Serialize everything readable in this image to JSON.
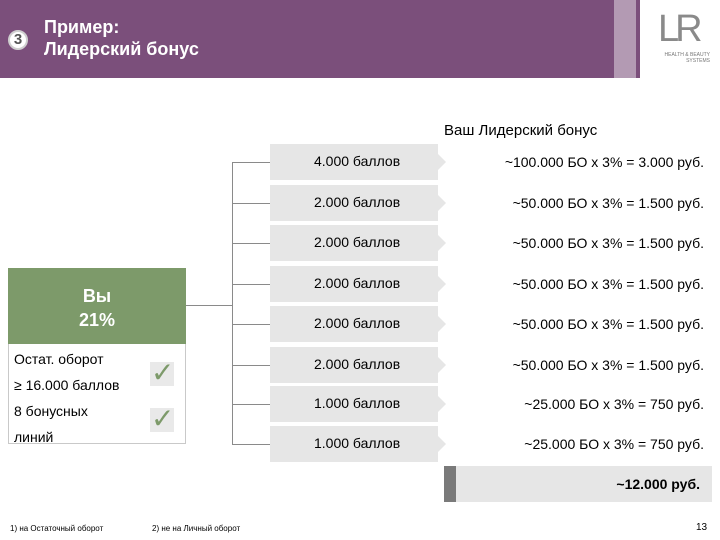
{
  "header": {
    "step_number": "3",
    "title_line1": "Пример:",
    "title_line2": "Лидерский бонус",
    "logo_mark": "LR",
    "logo_sub1": "HEALTH & BEAUTY",
    "logo_sub2": "SYSTEMS",
    "colors": {
      "band": "#7b4f7b",
      "band_light": "#b39ab3"
    }
  },
  "section_title": "Ваш Лидерский бонус",
  "you": {
    "label": "Вы",
    "percent": "21%",
    "turnover_line1": "Остат. оборот",
    "turnover_line2": "≥ 16.000 баллов",
    "lines_line1": "8 бонусных",
    "lines_line2": "линий",
    "colors": {
      "box": "#7d9a6a"
    }
  },
  "rows": [
    {
      "points": "4.000 баллов",
      "calc": "~100.000 БО x 3% = 3.000 руб."
    },
    {
      "points": "2.000 баллов",
      "calc": "~50.000 БО x 3% = 1.500 руб."
    },
    {
      "points": "2.000 баллов",
      "calc": "~50.000 БО x 3% = 1.500 руб."
    },
    {
      "points": "2.000 баллов",
      "calc": "~50.000 БО x 3% = 1.500 руб."
    },
    {
      "points": "2.000 баллов",
      "calc": "~50.000 БО x 3% = 1.500 руб."
    },
    {
      "points": "2.000 баллов",
      "calc": "~50.000 БО x 3% = 1.500 руб."
    },
    {
      "points": "1.000 баллов",
      "calc": "~25.000 БО x 3% = 750 руб."
    },
    {
      "points": "1.000 баллов",
      "calc": "~25.000 БО x 3% = 750 руб."
    }
  ],
  "total": "~12.000 руб.",
  "footnotes": {
    "note1": "1) на Остаточный оборот",
    "note2": "2) не на Личный оборот"
  },
  "page_number": "13"
}
